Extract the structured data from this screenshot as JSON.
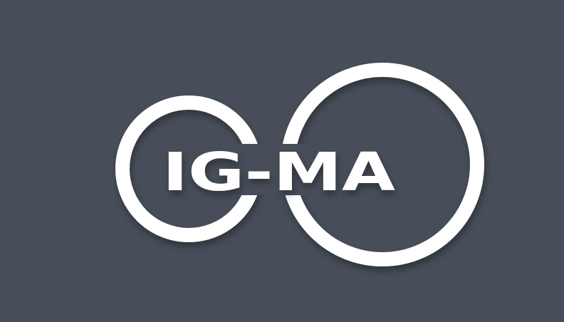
{
  "logo": {
    "text": "IG-MA"
  }
}
